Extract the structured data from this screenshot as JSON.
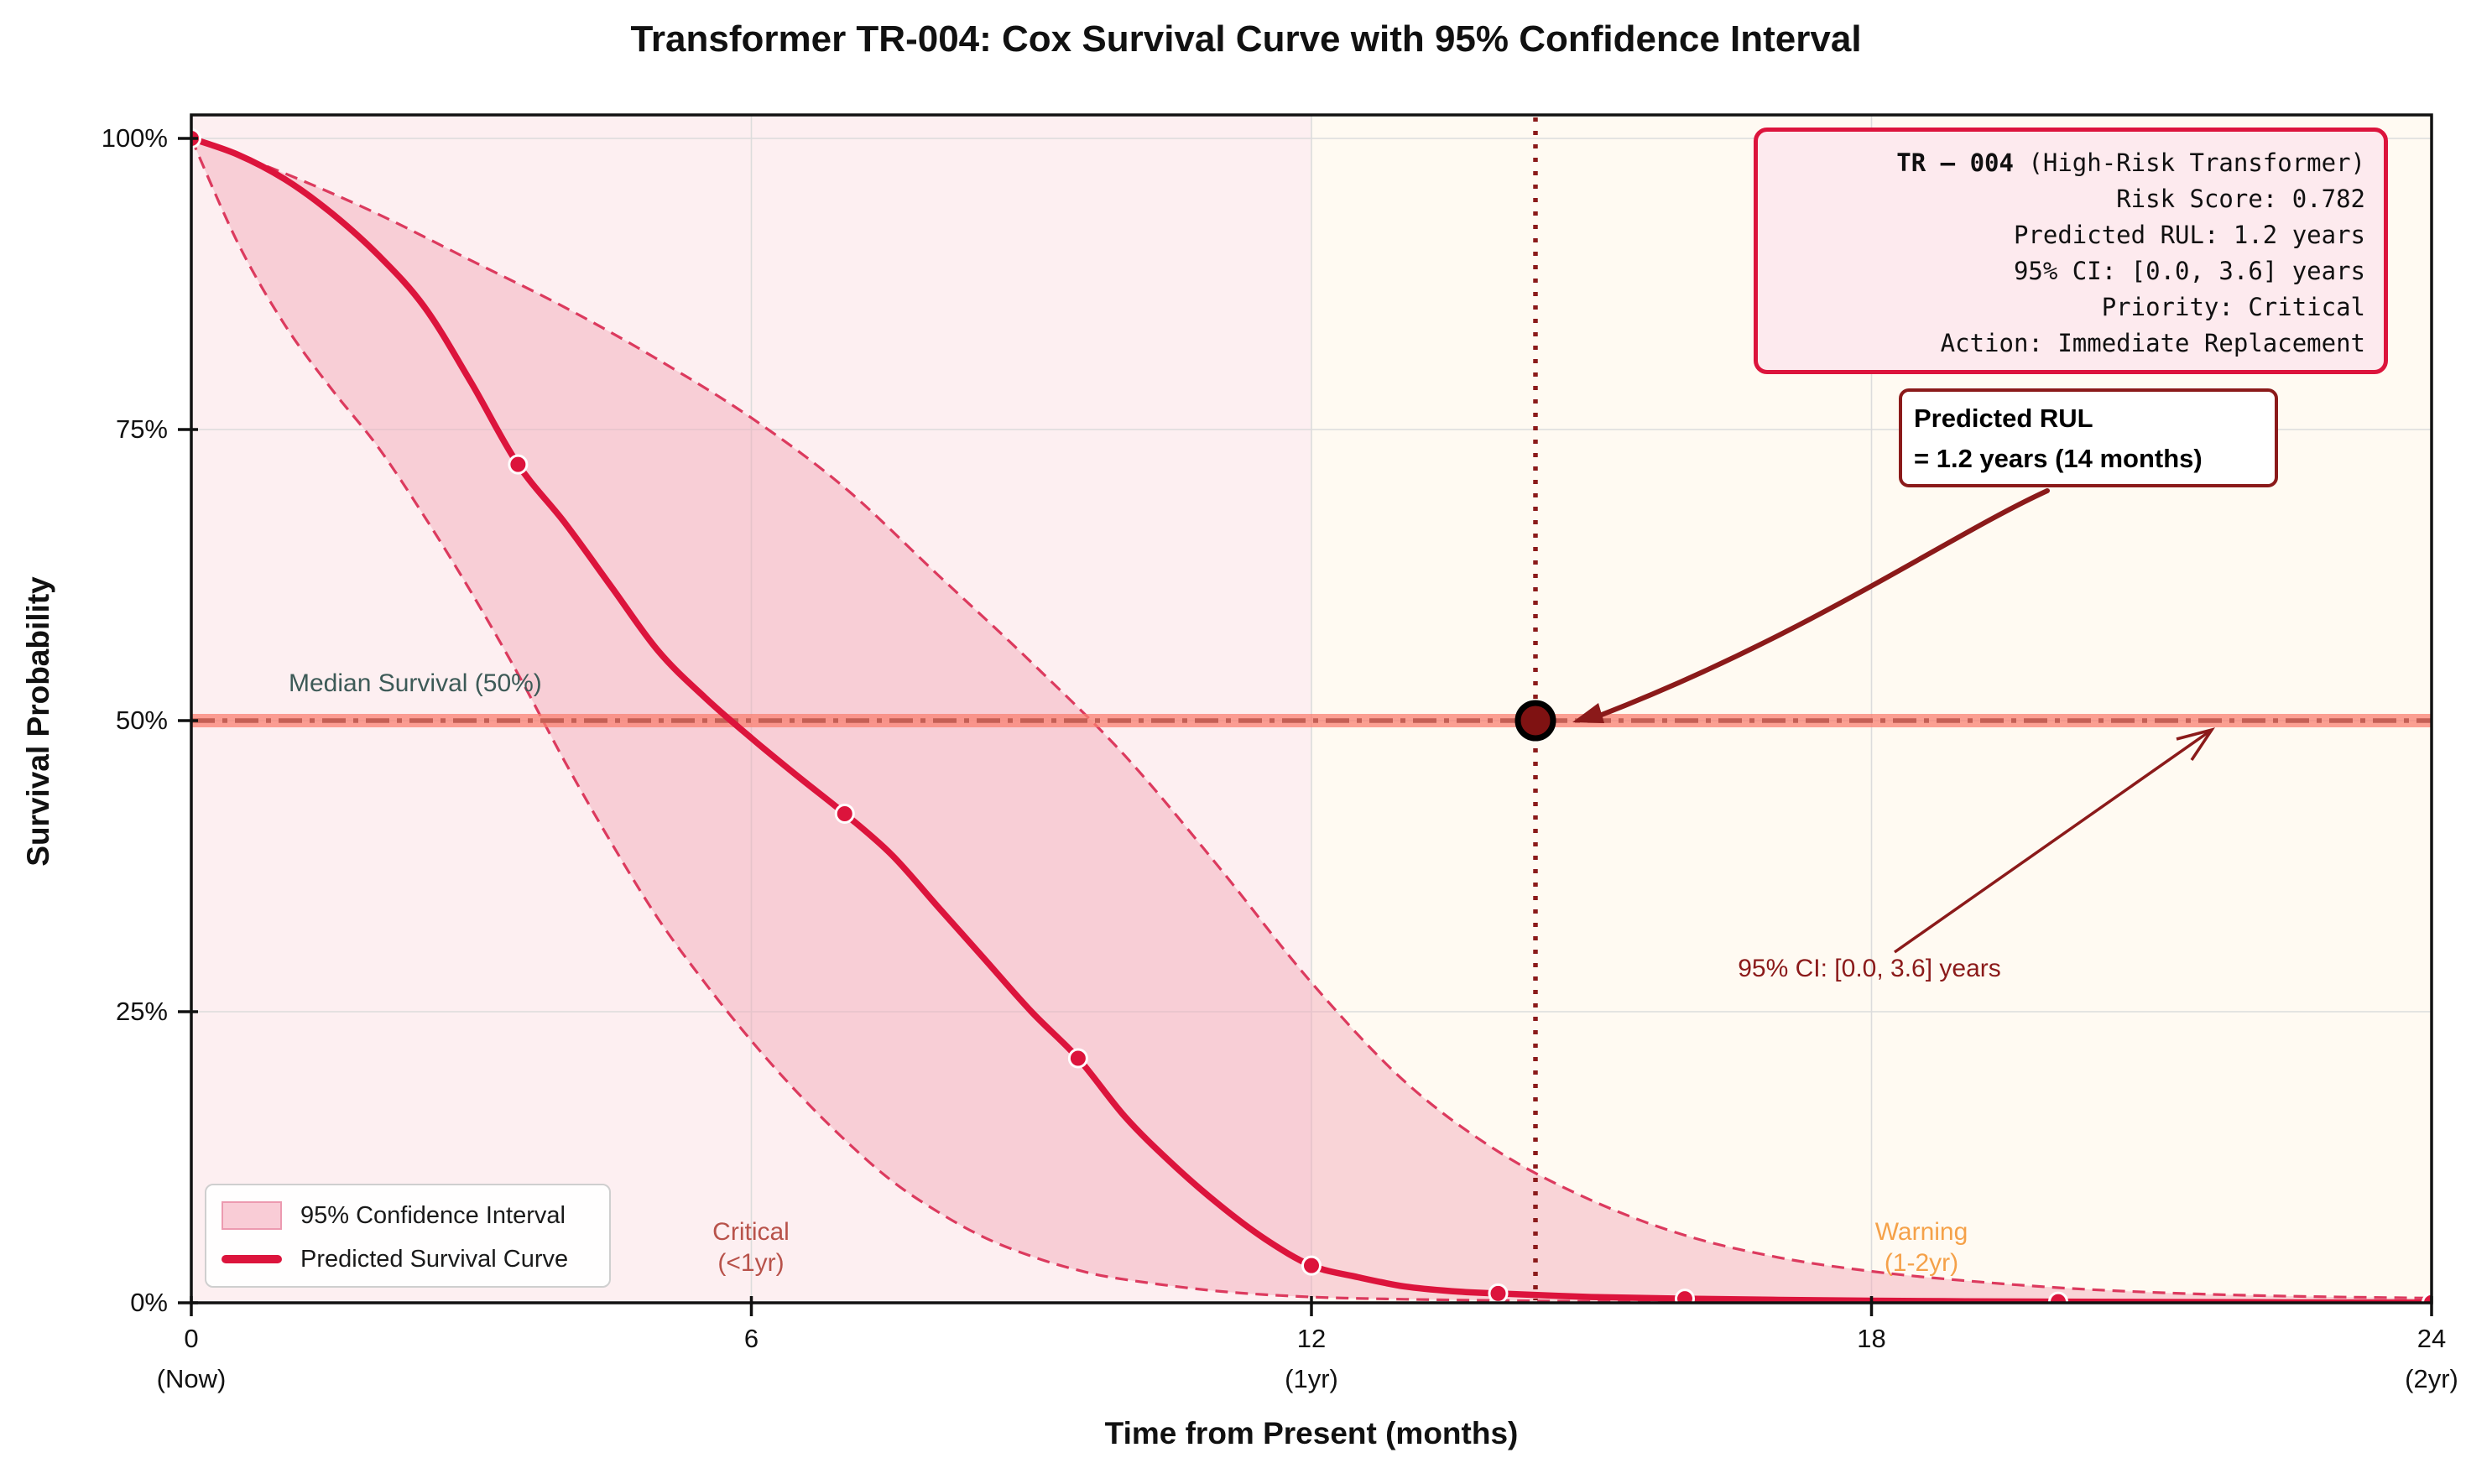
{
  "title": "Transformer TR-004: Cox Survival Curve with 95% Confidence Interval",
  "axes": {
    "x_label": "Time from Present (months)",
    "y_label": "Survival Probability",
    "x_ticks": [
      {
        "value": 0,
        "label": "0",
        "sublabel": "(Now)"
      },
      {
        "value": 6,
        "label": "6",
        "sublabel": ""
      },
      {
        "value": 12,
        "label": "12",
        "sublabel": "(1yr)"
      },
      {
        "value": 18,
        "label": "18",
        "sublabel": ""
      },
      {
        "value": 24,
        "label": "24",
        "sublabel": "(2yr)"
      }
    ],
    "y_ticks": [
      {
        "value": 0,
        "label": "0%"
      },
      {
        "value": 25,
        "label": "25%"
      },
      {
        "value": 50,
        "label": "50%"
      },
      {
        "value": 75,
        "label": "75%"
      },
      {
        "value": 100,
        "label": "100%"
      }
    ]
  },
  "zones": {
    "critical": {
      "from": 0,
      "to": 12,
      "color": "#fdeff1",
      "label_line1": "Critical",
      "label_line2": "(<1yr)",
      "label_color": "#b8524a"
    },
    "warning": {
      "from": 12,
      "to": 24,
      "color": "#fffaf2",
      "label_line1": "Warning",
      "label_line2": "(1-2yr)",
      "label_color": "#f5a149"
    }
  },
  "median_line": {
    "label": "Median Survival (50%)",
    "value": 50,
    "band_color": "rgba(250,128,114,0.75)",
    "dash_color": "#c45f55"
  },
  "rul_marker": {
    "months": 14.4,
    "probability": 50,
    "line_color": "#8b1a1a",
    "dot_fill": "#7f1212"
  },
  "legend": {
    "items": [
      {
        "label": "95% Confidence Interval",
        "type": "patch"
      },
      {
        "label": "Predicted Survival Curve",
        "type": "line"
      }
    ]
  },
  "info_box": {
    "title_bold": "TR – 004",
    "title_rest": " (High-Risk Transformer)",
    "lines": [
      "Risk Score: 0.782",
      "Predicted RUL: 1.2 years",
      "95% CI: [0.0, 3.6] years",
      "Priority: Critical",
      "Action: Immediate Replacement"
    ]
  },
  "rul_annotation": {
    "line1": "Predicted RUL",
    "line2": "= 1.2 years (14 months)"
  },
  "ci_annotation": {
    "text": "95% CI: [0.0, 3.6] years"
  },
  "chart_data": {
    "type": "line",
    "title": "Transformer TR-004: Cox Survival Curve with 95% Confidence Interval",
    "xlabel": "Time from Present (months)",
    "ylabel": "Survival Probability",
    "xlim": [
      0,
      24
    ],
    "ylim": [
      0,
      102.5
    ],
    "grid": true,
    "x_gridlines": [
      6,
      12,
      18,
      24
    ],
    "y_gridlines": [
      25,
      50,
      75,
      100
    ],
    "legend_position": "lower left",
    "colors": {
      "curve": "#dc143c",
      "ci_fill": "rgba(242,166,181,0.45)",
      "ci_edge": "#dc3a5e",
      "grid": "#dcdcdc",
      "spine": "#111111",
      "annotation_dark_red": "#8b1a1a"
    },
    "series": [
      {
        "name": "Predicted Survival Curve",
        "x": [
          0,
          0.5,
          1,
          1.5,
          2,
          2.5,
          3,
          3.5,
          4,
          4.5,
          5,
          5.5,
          6,
          6.5,
          7,
          7.5,
          8,
          8.5,
          9,
          9.5,
          10,
          10.5,
          11,
          11.5,
          12,
          12.5,
          13,
          13.5,
          14,
          15,
          16,
          17,
          18,
          19,
          20,
          21,
          22,
          23,
          24
        ],
        "y": [
          100,
          98.6,
          96.5,
          93.6,
          90,
          85.5,
          79,
          72,
          67,
          61.5,
          56,
          52,
          48.5,
          45.2,
          42,
          38.5,
          34,
          29.5,
          25,
          21,
          16,
          12,
          8.5,
          5.5,
          3.2,
          2.2,
          1.4,
          1.0,
          0.8,
          0.5,
          0.35,
          0.25,
          0.18,
          0.13,
          0.1,
          0.07,
          0.05,
          0.03,
          0.02
        ]
      },
      {
        "name": "95% CI Upper",
        "x": [
          0,
          1,
          2,
          3,
          4,
          5,
          6,
          7,
          8,
          9,
          10,
          11,
          12,
          13,
          14,
          15,
          16,
          17,
          18,
          19,
          20,
          21,
          22,
          23,
          24
        ],
        "y": [
          100,
          97,
          93.5,
          89.5,
          85.5,
          81,
          76,
          70,
          62.5,
          55,
          47,
          37.5,
          27.5,
          19,
          13,
          8.8,
          5.8,
          3.9,
          2.7,
          1.9,
          1.3,
          0.9,
          0.65,
          0.5,
          0.4
        ]
      },
      {
        "name": "95% CI Lower",
        "x": [
          0,
          0.5,
          1,
          1.5,
          2,
          2.5,
          3,
          3.5,
          4,
          4.5,
          5,
          5.5,
          6,
          6.5,
          7,
          7.5,
          8,
          8.5,
          9,
          9.5,
          10,
          11,
          12,
          13,
          14,
          15,
          16,
          18,
          20,
          22,
          24
        ],
        "y": [
          100,
          91,
          84,
          78.5,
          73.5,
          67.5,
          61,
          54,
          46.5,
          39.5,
          33,
          27.5,
          22.5,
          18,
          14,
          10.5,
          7.8,
          5.6,
          4,
          2.8,
          2,
          1,
          0.5,
          0.3,
          0.2,
          0.12,
          0.08,
          0.04,
          0.02,
          0.01,
          0
        ]
      }
    ],
    "curve_markers": {
      "x": [
        0,
        3.5,
        7,
        9.5,
        12,
        14,
        16,
        20,
        24
      ],
      "y": [
        100,
        72,
        42,
        21,
        3.2,
        0.8,
        0.35,
        0.1,
        0.02
      ]
    },
    "median_survival_pct": 50,
    "predicted_rul_months": 14.4
  }
}
